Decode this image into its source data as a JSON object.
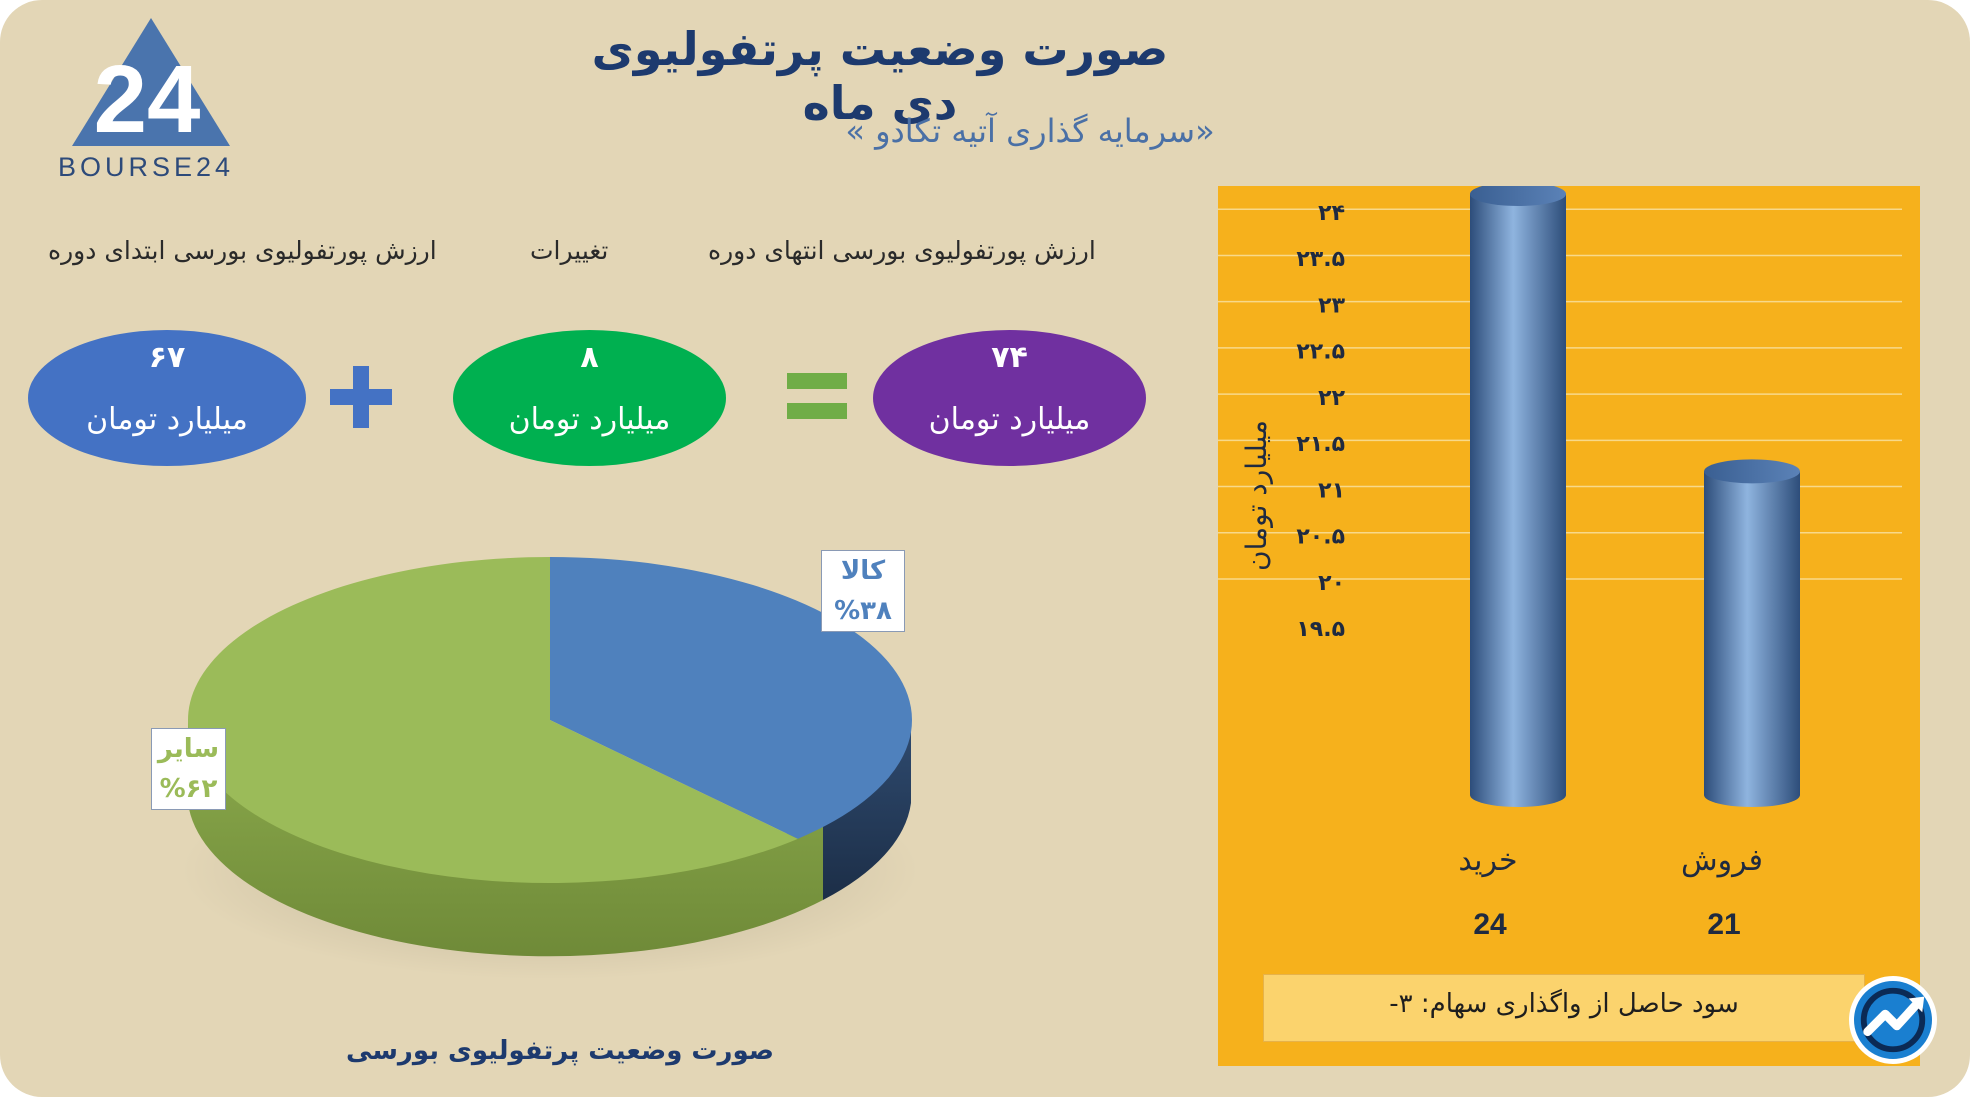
{
  "header": {
    "title": "صورت وضعیت پرتفولیوی دی ماه",
    "subtitle": "«سرمایه گذاری آتیه تکادو »"
  },
  "logo": {
    "text": "BOURSE24",
    "mark": "24"
  },
  "summary": {
    "labels": {
      "end": "ارزش پورتفولیوی بورسی انتهای دوره",
      "change": "تغییرات",
      "start": "ارزش پورتفولیوی بورسی ابتدای دوره"
    },
    "end_value": "۷۴",
    "change_value": "۸",
    "start_value": "۶۷",
    "unit": "میلیارد تومان",
    "colors": {
      "end": "#7030a0",
      "change": "#00b050",
      "start": "#4472c4",
      "operator_plus": "#4472c4",
      "operator_equals": "#70ad47"
    }
  },
  "pie": {
    "caption": "صورت وضعیت پرتفولیوی بورسی",
    "labels": [
      {
        "name": "کالا",
        "pct": "%۳۸"
      },
      {
        "name": "سایر",
        "pct": "%۶۲"
      }
    ]
  },
  "bar": {
    "ylabel": "میلیارد تومان",
    "profit_text": "سود حاصل از واگذاری سهام: ۳-",
    "values_text": [
      "24",
      "21"
    ]
  },
  "colors": {
    "background": "#e3d6b6",
    "panel": "#f6b11c",
    "pie_blue": "#4f81bd",
    "pie_green": "#9bbb59",
    "title": "#1d3a6e"
  },
  "chart_data": [
    {
      "type": "pie",
      "title": "صورت وضعیت پرتفولیوی بورسی",
      "slices": [
        {
          "label": "کالا",
          "value": 38,
          "color": "#4f81bd"
        },
        {
          "label": "سایر",
          "value": 62,
          "color": "#9bbb59"
        }
      ]
    },
    {
      "type": "bar",
      "categories": [
        "خرید",
        "فروش"
      ],
      "values": [
        24,
        21
      ],
      "ylabel": "میلیارد تومان",
      "xlabel": "",
      "ylim": [
        19.5,
        24
      ],
      "yticks": [
        "۱۹.۵",
        "۲۰",
        "۲۰.۵",
        "۲۱",
        "۲۱.۵",
        "۲۲",
        "۲۲.۵",
        "۲۳",
        "۲۳.۵",
        "۲۴"
      ],
      "grid": true
    }
  ]
}
